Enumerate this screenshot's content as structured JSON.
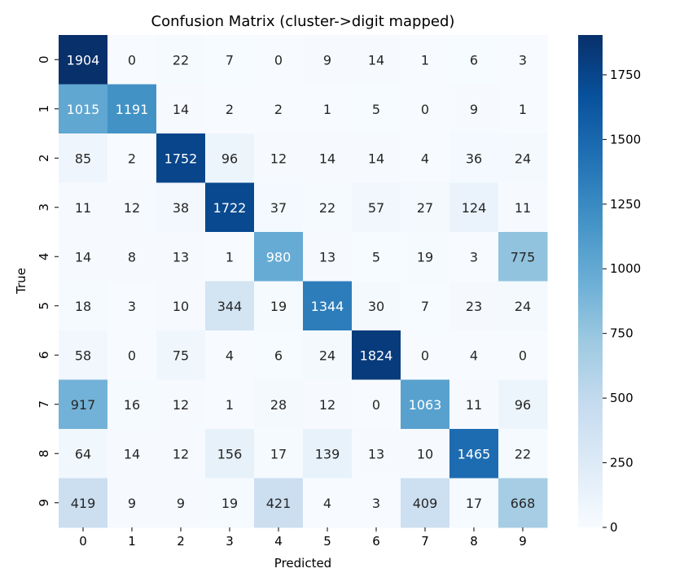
{
  "chart_data": {
    "type": "heatmap",
    "title": "Confusion Matrix (cluster->digit mapped)",
    "xlabel": "Predicted",
    "ylabel": "True",
    "x_categories": [
      "0",
      "1",
      "2",
      "3",
      "4",
      "5",
      "6",
      "7",
      "8",
      "9"
    ],
    "y_categories": [
      "0",
      "1",
      "2",
      "3",
      "4",
      "5",
      "6",
      "7",
      "8",
      "9"
    ],
    "values": [
      [
        1904,
        0,
        22,
        7,
        0,
        9,
        14,
        1,
        6,
        3
      ],
      [
        1015,
        1191,
        14,
        2,
        2,
        1,
        5,
        0,
        9,
        1
      ],
      [
        85,
        2,
        1752,
        96,
        12,
        14,
        14,
        4,
        36,
        24
      ],
      [
        11,
        12,
        38,
        1722,
        37,
        22,
        57,
        27,
        124,
        11
      ],
      [
        14,
        8,
        13,
        1,
        980,
        13,
        5,
        19,
        3,
        775
      ],
      [
        18,
        3,
        10,
        344,
        19,
        1344,
        30,
        7,
        23,
        24
      ],
      [
        58,
        0,
        75,
        4,
        6,
        24,
        1824,
        0,
        4,
        0
      ],
      [
        917,
        16,
        12,
        1,
        28,
        12,
        0,
        1063,
        11,
        96
      ],
      [
        64,
        14,
        12,
        156,
        17,
        139,
        13,
        10,
        1465,
        22
      ],
      [
        419,
        9,
        9,
        19,
        421,
        4,
        3,
        409,
        17,
        668
      ]
    ],
    "colormap": "Blues",
    "colorbar": {
      "range": [
        0,
        1904
      ],
      "ticks": [
        0,
        250,
        500,
        750,
        1000,
        1250,
        1500,
        1750
      ]
    },
    "legend": "colorbar-right",
    "grid": false
  }
}
